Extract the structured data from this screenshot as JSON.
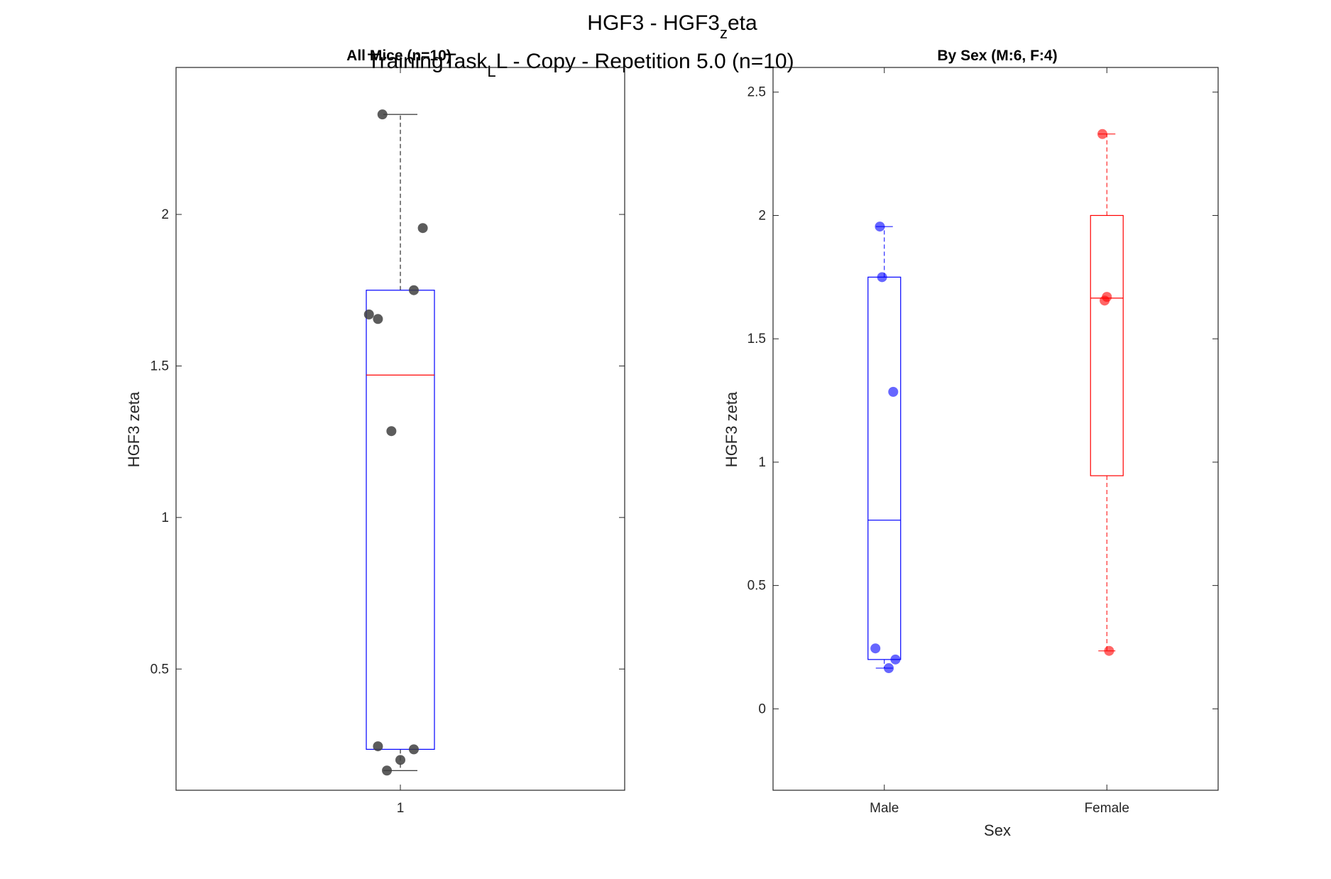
{
  "figure": {
    "title_main": "HGF3 - HGF3",
    "title_main_sub": "z",
    "title_main_tail": "eta",
    "title_second": "TrainingTask",
    "title_second_sub": "L",
    "title_second_tail": "L - Copy - Repetition 5.0 (n=10)"
  },
  "colors": {
    "box_all": "#0000ff",
    "median_all": "#ff0000",
    "points_all": "#404040",
    "male": "#0000ff",
    "female": "#ff0000",
    "whisker_all": "#000000"
  },
  "chart_data": [
    {
      "type": "box",
      "title": "All Mice (n=10)",
      "xlabel": "",
      "ylabel": "HGF3 zeta",
      "categories": [
        "1"
      ],
      "ylim": [
        0.1,
        2.485
      ],
      "yticks": [
        0.5,
        1,
        1.5,
        2
      ],
      "ytick_labels": [
        "0.5",
        "1",
        "1.5",
        "2"
      ],
      "grid": false,
      "boxes": [
        {
          "category": "1",
          "min": 0.165,
          "q1": 0.235,
          "median": 1.47,
          "q3": 1.75,
          "max": 2.33
        }
      ],
      "points": [
        {
          "x": 0.96,
          "y": 2.33
        },
        {
          "x": 1.05,
          "y": 1.955
        },
        {
          "x": 1.03,
          "y": 1.75
        },
        {
          "x": 0.93,
          "y": 1.67
        },
        {
          "x": 0.95,
          "y": 1.655
        },
        {
          "x": 0.98,
          "y": 1.285
        },
        {
          "x": 0.95,
          "y": 0.245
        },
        {
          "x": 1.03,
          "y": 0.235
        },
        {
          "x": 1.0,
          "y": 0.2
        },
        {
          "x": 0.97,
          "y": 0.165
        }
      ]
    },
    {
      "type": "box",
      "title": "By Sex (M:6, F:4)",
      "xlabel": "Sex",
      "ylabel": "HGF3 zeta",
      "categories": [
        "Male",
        "Female"
      ],
      "ylim": [
        -0.33,
        2.6
      ],
      "yticks": [
        0,
        0.5,
        1,
        1.5,
        2,
        2.5
      ],
      "ytick_labels": [
        "0",
        "0.5",
        "1",
        "1.5",
        "2",
        "2.5"
      ],
      "grid": false,
      "boxes": [
        {
          "category": "Male",
          "min": 0.165,
          "q1": 0.2,
          "median": 0.765,
          "q3": 1.75,
          "max": 1.955
        },
        {
          "category": "Female",
          "min": 0.235,
          "q1": 0.945,
          "median": 1.665,
          "q3": 2.0,
          "max": 2.33
        }
      ],
      "points": [
        {
          "x": 0.98,
          "y": 1.955,
          "group": "Male"
        },
        {
          "x": 0.99,
          "y": 1.75,
          "group": "Male"
        },
        {
          "x": 1.04,
          "y": 1.285,
          "group": "Male"
        },
        {
          "x": 0.96,
          "y": 0.245,
          "group": "Male"
        },
        {
          "x": 1.05,
          "y": 0.2,
          "group": "Male"
        },
        {
          "x": 1.02,
          "y": 0.165,
          "group": "Male"
        },
        {
          "x": 1.98,
          "y": 2.33,
          "group": "Female"
        },
        {
          "x": 2.0,
          "y": 1.67,
          "group": "Female"
        },
        {
          "x": 1.99,
          "y": 1.655,
          "group": "Female"
        },
        {
          "x": 2.01,
          "y": 0.235,
          "group": "Female"
        }
      ]
    }
  ]
}
